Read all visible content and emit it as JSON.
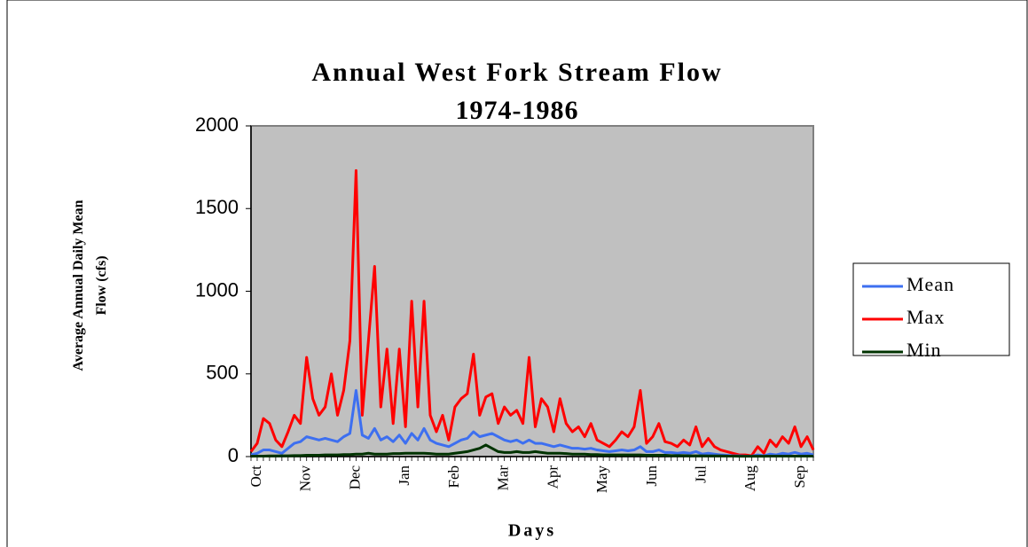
{
  "chart_data": {
    "type": "line",
    "title": "Annual West Fork Stream Flow",
    "subtitle": "1974-1986",
    "xlabel": "Days",
    "ylabel": "Average Annual Daily Mean Flow (cfs)",
    "categories": [
      null,
      "Oct",
      null,
      null,
      null,
      null,
      null,
      null,
      null,
      "Nov",
      null,
      null,
      null,
      null,
      null,
      null,
      null,
      "Dec",
      null,
      null,
      null,
      null,
      null,
      null,
      null,
      "Jan",
      null,
      null,
      null,
      null,
      null,
      null,
      null,
      "Feb",
      null,
      null,
      null,
      null,
      null,
      null,
      null,
      "Mar",
      null,
      null,
      null,
      null,
      null,
      null,
      null,
      "Apr",
      null,
      null,
      null,
      null,
      null,
      null,
      null,
      "May",
      null,
      null,
      null,
      null,
      null,
      null,
      null,
      "Jun",
      null,
      null,
      null,
      null,
      null,
      null,
      null,
      "Jul",
      null,
      null,
      null,
      null,
      null,
      null,
      null,
      "Aug",
      null,
      null,
      null,
      null,
      null,
      null,
      null,
      "Sep",
      null,
      null
    ],
    "ylim": [
      0,
      2000
    ],
    "yticks": [
      0,
      500,
      1000,
      1500,
      2000
    ],
    "grid": false,
    "legend": "right",
    "series": [
      {
        "name": "Mean",
        "color": "#3d6ff0",
        "values": [
          10,
          20,
          40,
          40,
          30,
          20,
          50,
          80,
          90,
          120,
          110,
          100,
          110,
          100,
          90,
          120,
          140,
          400,
          130,
          110,
          170,
          100,
          120,
          90,
          130,
          80,
          140,
          100,
          170,
          100,
          80,
          70,
          60,
          80,
          100,
          110,
          150,
          120,
          130,
          140,
          120,
          100,
          90,
          100,
          80,
          100,
          80,
          80,
          70,
          60,
          70,
          60,
          50,
          50,
          45,
          50,
          40,
          35,
          30,
          35,
          40,
          35,
          40,
          60,
          30,
          30,
          40,
          25,
          25,
          20,
          25,
          20,
          30,
          15,
          20,
          15,
          10,
          8,
          5,
          5,
          3,
          3,
          10,
          5,
          15,
          10,
          20,
          15,
          25,
          15,
          20,
          10
        ]
      },
      {
        "name": "Max",
        "color": "#ff0000",
        "values": [
          30,
          80,
          230,
          200,
          100,
          60,
          150,
          250,
          200,
          600,
          350,
          250,
          300,
          500,
          250,
          400,
          700,
          1730,
          250,
          700,
          1150,
          300,
          650,
          200,
          650,
          180,
          940,
          300,
          940,
          250,
          150,
          250,
          100,
          300,
          350,
          380,
          620,
          250,
          360,
          380,
          200,
          300,
          250,
          280,
          200,
          600,
          180,
          350,
          300,
          150,
          350,
          200,
          150,
          180,
          120,
          200,
          100,
          80,
          60,
          100,
          150,
          120,
          180,
          400,
          80,
          120,
          200,
          90,
          80,
          60,
          100,
          70,
          180,
          60,
          110,
          60,
          40,
          30,
          20,
          10,
          10,
          5,
          60,
          20,
          100,
          60,
          120,
          80,
          180,
          60,
          120,
          40
        ]
      },
      {
        "name": "Min",
        "color": "#003300",
        "values": [
          2,
          3,
          3,
          4,
          4,
          5,
          5,
          6,
          6,
          8,
          8,
          8,
          10,
          10,
          10,
          12,
          12,
          15,
          15,
          20,
          15,
          15,
          15,
          18,
          18,
          20,
          20,
          20,
          20,
          18,
          15,
          15,
          15,
          20,
          25,
          30,
          40,
          50,
          70,
          50,
          30,
          25,
          25,
          30,
          25,
          25,
          30,
          25,
          20,
          20,
          20,
          18,
          15,
          15,
          15,
          12,
          12,
          10,
          10,
          10,
          10,
          10,
          10,
          10,
          8,
          8,
          8,
          8,
          6,
          6,
          6,
          5,
          5,
          5,
          4,
          4,
          4,
          3,
          3,
          2,
          2,
          2,
          2,
          2,
          3,
          3,
          3,
          3,
          3,
          3,
          3,
          3
        ]
      }
    ]
  }
}
